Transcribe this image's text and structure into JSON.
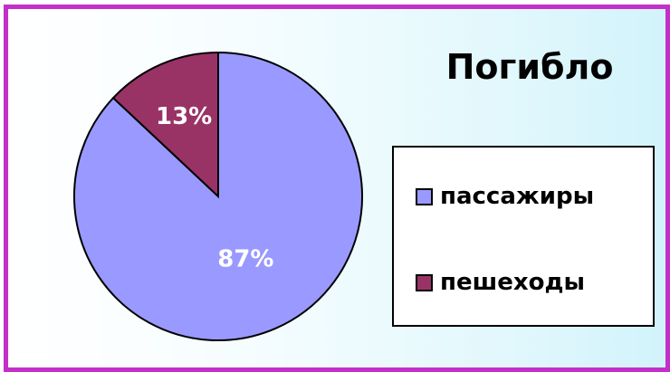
{
  "chart_data": {
    "type": "pie",
    "title": "Погибло",
    "slices": [
      {
        "label": "пассажиры",
        "value": 87,
        "display": "87%",
        "color": "#9999ff"
      },
      {
        "label": "пешеходы",
        "value": 13,
        "display": "13%",
        "color": "#993366"
      }
    ],
    "legend": "right"
  },
  "colors": {
    "frame_border": "#c330c8",
    "slice_label_text": "#ffffff"
  }
}
